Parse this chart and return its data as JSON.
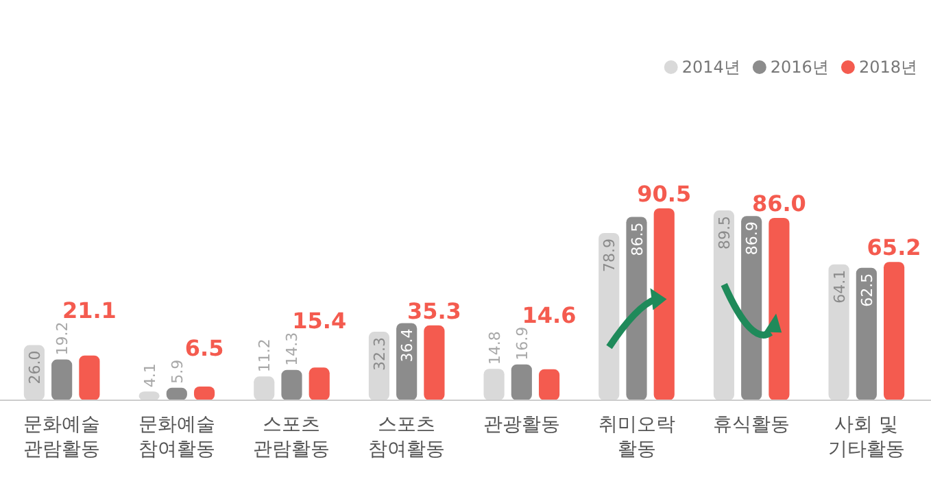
{
  "chart_data": {
    "type": "bar",
    "categories": [
      "문화예술\n관람활동",
      "문화예술\n참여활동",
      "스포츠\n관람활동",
      "스포츠\n참여활동",
      "관광활동",
      "취미오락\n활동",
      "휴식활동",
      "사회 및\n기타활동"
    ],
    "series": [
      {
        "name": "2014년",
        "color": "#d9d9d9",
        "values": [
          26.0,
          4.1,
          11.2,
          32.3,
          14.8,
          78.9,
          89.5,
          64.1
        ],
        "value_labels": [
          "26.0",
          "4.1",
          "11.2",
          "32.3",
          "14.8",
          "78.9",
          "89.5",
          "64.1"
        ]
      },
      {
        "name": "2016년",
        "color": "#8c8c8c",
        "values": [
          19.2,
          5.9,
          14.3,
          36.4,
          16.9,
          86.5,
          86.9,
          62.5
        ],
        "value_labels": [
          "19.2",
          "5.9",
          "14.3",
          "36.4",
          "16.9",
          "86.5",
          "86.9",
          "62.5"
        ]
      },
      {
        "name": "2018년",
        "color": "#f45b4f",
        "values": [
          21.1,
          6.5,
          15.4,
          35.3,
          14.6,
          90.5,
          86.0,
          65.2
        ],
        "value_labels": [
          "21.1",
          "6.5",
          "15.4",
          "35.3",
          "14.6",
          "90.5",
          "86.0",
          "65.2"
        ]
      }
    ],
    "tick_labels": "x",
    "legend": "top right"
  }
}
